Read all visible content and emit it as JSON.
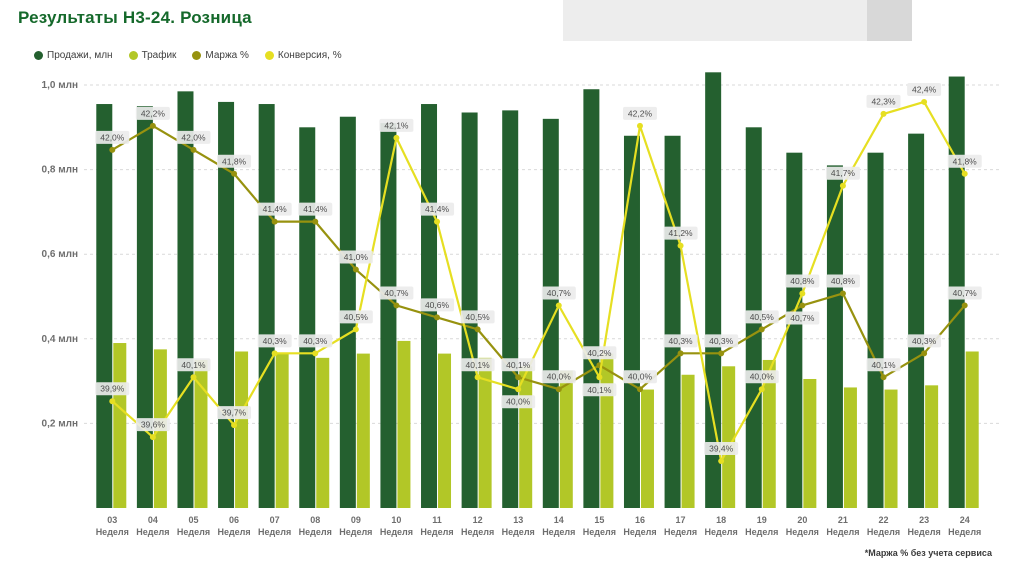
{
  "page": {
    "title": "Результаты Н3-24. Розница",
    "footnote": "*Маржа % без учета сервиса"
  },
  "colors": {
    "title": "#15692b",
    "sales_bar": "#24602f",
    "traffic_bar": "#b2c727",
    "margin_line": "#97920f",
    "conversion_line": "#e6df22",
    "label_chip_bg": "#ececec",
    "label_text": "#4d4d4d",
    "axis_text": "#6e6e6e",
    "gridline": "#d9d9d9"
  },
  "legend": {
    "items": [
      {
        "label": "Продажи, млн",
        "color": "#24602f"
      },
      {
        "label": "Трафик",
        "color": "#b2c727"
      },
      {
        "label": "Маржа %",
        "color": "#97920f"
      },
      {
        "label": "Конверсия, %",
        "color": "#e6df22"
      }
    ]
  },
  "chart_data": {
    "type": "combo: bar + line",
    "title": "Результаты Н3-24. Розница",
    "categories": [
      "03",
      "04",
      "05",
      "06",
      "07",
      "08",
      "09",
      "10",
      "11",
      "12",
      "13",
      "14",
      "15",
      "16",
      "17",
      "18",
      "19",
      "20",
      "21",
      "22",
      "23",
      "24"
    ],
    "category_sublabel": "Неделя",
    "value_axis": {
      "unit": "млн",
      "ticks": [
        "0,2 млн",
        "0,4 млн",
        "0,6 млн",
        "0,8 млн",
        "1,0 млн"
      ],
      "tick_values": [
        0.2,
        0.4,
        0.6,
        0.8,
        1.0
      ],
      "min": 0,
      "max": 1.06
    },
    "percent_axis": {
      "min": 39.2,
      "max": 42.6,
      "visible": false
    },
    "grid": "dashed horizontal",
    "legend_position": "top-left",
    "data_labels": "percent lines only, format 0,0%",
    "series": [
      {
        "name": "Продажи, млн",
        "type": "bar",
        "color": "#24602f",
        "values": [
          0.955,
          0.95,
          0.985,
          0.96,
          0.955,
          0.9,
          0.925,
          0.91,
          0.955,
          0.935,
          0.94,
          0.92,
          0.99,
          0.88,
          0.88,
          1.03,
          0.9,
          0.84,
          0.81,
          0.84,
          0.885,
          1.02
        ]
      },
      {
        "name": "Трафик",
        "type": "bar",
        "color": "#b2c727",
        "values": [
          0.39,
          0.375,
          0.35,
          0.37,
          0.365,
          0.355,
          0.365,
          0.395,
          0.365,
          0.355,
          0.335,
          0.325,
          0.365,
          0.28,
          0.315,
          0.335,
          0.35,
          0.305,
          0.285,
          0.28,
          0.29,
          0.37
        ]
      },
      {
        "name": "Маржа %",
        "type": "line",
        "color": "#97920f",
        "values": [
          42.0,
          42.2,
          42.0,
          41.8,
          41.4,
          41.4,
          41.0,
          40.7,
          40.6,
          40.5,
          40.1,
          40.0,
          40.2,
          40.0,
          40.3,
          40.3,
          40.5,
          40.7,
          40.8,
          40.1,
          40.3,
          40.7
        ]
      },
      {
        "name": "Конверсия, %",
        "type": "line",
        "color": "#e6df22",
        "values": [
          39.9,
          39.6,
          40.1,
          39.7,
          40.3,
          40.3,
          40.5,
          42.1,
          41.4,
          40.1,
          40.0,
          40.7,
          40.1,
          42.2,
          41.2,
          39.4,
          40.0,
          40.8,
          41.7,
          42.3,
          42.4,
          41.8
        ]
      }
    ]
  }
}
